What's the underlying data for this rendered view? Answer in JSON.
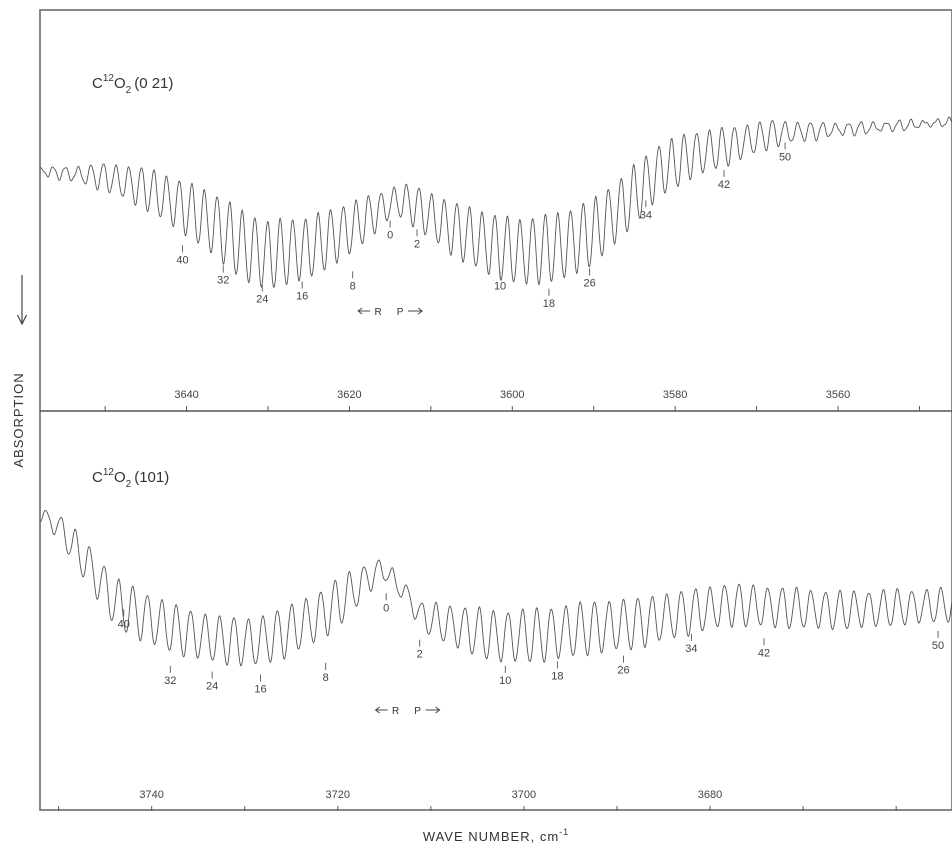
{
  "figure": {
    "y_axis_label": "ABSORPTION",
    "x_axis_label": "WAVE NUMBER, cm",
    "x_axis_label_exponent": "-1"
  },
  "chart_data": [
    {
      "type": "line",
      "title": {
        "base": "C",
        "sup": "12",
        "mid": "O",
        "sub": "2",
        "band": "(0 21)"
      },
      "xlabel": "WAVE NUMBER, cm-1",
      "ylabel": "ABSORPTION",
      "x_reversed": true,
      "xlim": [
        3658,
        3546
      ],
      "xticks": [
        3640,
        3620,
        3600,
        3580,
        3560
      ],
      "branch_labels": {
        "r": "R",
        "p": "P"
      },
      "branch_center": 3615,
      "grid": false,
      "legend": "none",
      "anchors": [
        [
          3658,
          0.44
        ],
        [
          3650,
          0.4
        ],
        [
          3645,
          0.32
        ],
        [
          3640,
          0.18
        ],
        [
          3636,
          0.05
        ],
        [
          3633,
          -0.08
        ],
        [
          3630,
          -0.14
        ],
        [
          3625,
          -0.09
        ],
        [
          3620,
          0.04
        ],
        [
          3616,
          0.18
        ],
        [
          3614,
          0.24
        ],
        [
          3612,
          0.2
        ],
        [
          3608,
          0.06
        ],
        [
          3603,
          -0.06
        ],
        [
          3599,
          -0.12
        ],
        [
          3594,
          -0.08
        ],
        [
          3590,
          0.02
        ],
        [
          3586,
          0.22
        ],
        [
          3582,
          0.44
        ],
        [
          3578,
          0.55
        ],
        [
          3573,
          0.62
        ],
        [
          3568,
          0.7
        ],
        [
          3562,
          0.72
        ],
        [
          3556,
          0.74
        ],
        [
          3546,
          0.78
        ]
      ],
      "amp_anchors": [
        [
          3658,
          0.02
        ],
        [
          3654,
          0.05
        ],
        [
          3649,
          0.1
        ],
        [
          3644,
          0.15
        ],
        [
          3640,
          0.18
        ],
        [
          3636,
          0.22
        ],
        [
          3632,
          0.24
        ],
        [
          3627,
          0.22
        ],
        [
          3620,
          0.18
        ],
        [
          3615,
          0.1
        ],
        [
          3611,
          0.15
        ],
        [
          3605,
          0.2
        ],
        [
          3598,
          0.23
        ],
        [
          3592,
          0.23
        ],
        [
          3585,
          0.2
        ],
        [
          3580,
          0.17
        ],
        [
          3574,
          0.13
        ],
        [
          3568,
          0.09
        ],
        [
          3564,
          0.06
        ],
        [
          3559,
          0.04
        ],
        [
          3552,
          0.03
        ],
        [
          3546,
          0.02
        ]
      ],
      "spacing": 1.55,
      "phase_center": 3613,
      "peak_labels": [
        {
          "label": "40",
          "x": 3640.5,
          "y": -0.05
        },
        {
          "label": "32",
          "x": 3635.5,
          "y": -0.19
        },
        {
          "label": "24",
          "x": 3630.7,
          "y": -0.32
        },
        {
          "label": "16",
          "x": 3625.8,
          "y": -0.3
        },
        {
          "label": "8",
          "x": 3619.6,
          "y": -0.23
        },
        {
          "label": "0",
          "x": 3615.0,
          "y": 0.12
        },
        {
          "label": "2",
          "x": 3611.7,
          "y": 0.06
        },
        {
          "label": "10",
          "x": 3601.5,
          "y": -0.23
        },
        {
          "label": "18",
          "x": 3595.5,
          "y": -0.35
        },
        {
          "label": "26",
          "x": 3590.5,
          "y": -0.21
        },
        {
          "label": "34",
          "x": 3583.6,
          "y": 0.26
        },
        {
          "label": "42",
          "x": 3574.0,
          "y": 0.47
        },
        {
          "label": "50",
          "x": 3566.5,
          "y": 0.66
        }
      ]
    },
    {
      "type": "line",
      "title": {
        "base": "C",
        "sup": "12",
        "mid": "O",
        "sub": "2",
        "band": "(101)"
      },
      "xlabel": "WAVE NUMBER, cm-1",
      "ylabel": "ABSORPTION",
      "x_reversed": true,
      "xlim": [
        3752,
        3654
      ],
      "xticks": [
        3740,
        3720,
        3700,
        3680
      ],
      "branch_labels": {
        "r": "R",
        "p": "P"
      },
      "branch_center": 3712.5,
      "grid": false,
      "legend": "none",
      "anchors": [
        [
          3752,
          0.78
        ],
        [
          3750,
          0.7
        ],
        [
          3747,
          0.45
        ],
        [
          3744,
          0.18
        ],
        [
          3741,
          0.08
        ],
        [
          3737,
          -0.02
        ],
        [
          3733,
          -0.08
        ],
        [
          3729,
          -0.1
        ],
        [
          3726,
          -0.04
        ],
        [
          3722,
          0.08
        ],
        [
          3719,
          0.22
        ],
        [
          3716,
          0.38
        ],
        [
          3715,
          0.4
        ],
        [
          3713,
          0.26
        ],
        [
          3711,
          0.08
        ],
        [
          3708,
          0.02
        ],
        [
          3703,
          -0.06
        ],
        [
          3698,
          -0.05
        ],
        [
          3693,
          0.0
        ],
        [
          3688,
          0.03
        ],
        [
          3683,
          0.1
        ],
        [
          3678,
          0.16
        ],
        [
          3672,
          0.14
        ],
        [
          3666,
          0.12
        ],
        [
          3660,
          0.14
        ],
        [
          3654,
          0.16
        ]
      ],
      "amp_anchors": [
        [
          3752,
          0.05
        ],
        [
          3748,
          0.12
        ],
        [
          3745,
          0.16
        ],
        [
          3741,
          0.17
        ],
        [
          3736,
          0.16
        ],
        [
          3731,
          0.16
        ],
        [
          3725,
          0.17
        ],
        [
          3719,
          0.16
        ],
        [
          3715,
          0.06
        ],
        [
          3712,
          0.08
        ],
        [
          3706,
          0.16
        ],
        [
          3700,
          0.18
        ],
        [
          3694,
          0.18
        ],
        [
          3688,
          0.17
        ],
        [
          3682,
          0.15
        ],
        [
          3676,
          0.14
        ],
        [
          3668,
          0.13
        ],
        [
          3660,
          0.12
        ],
        [
          3654,
          0.11
        ]
      ],
      "spacing": 1.55,
      "phase_center": 3711,
      "peak_labels": [
        {
          "label": "40",
          "x": 3743.0,
          "y": 0.15
        },
        {
          "label": "32",
          "x": 3738.0,
          "y": -0.24
        },
        {
          "label": "24",
          "x": 3733.5,
          "y": -0.28
        },
        {
          "label": "16",
          "x": 3728.3,
          "y": -0.3
        },
        {
          "label": "8",
          "x": 3721.3,
          "y": -0.22
        },
        {
          "label": "0",
          "x": 3714.8,
          "y": 0.26
        },
        {
          "label": "2",
          "x": 3711.2,
          "y": -0.06
        },
        {
          "label": "10",
          "x": 3702.0,
          "y": -0.24
        },
        {
          "label": "18",
          "x": 3696.4,
          "y": -0.21
        },
        {
          "label": "26",
          "x": 3689.3,
          "y": -0.17
        },
        {
          "label": "34",
          "x": 3682.0,
          "y": -0.02
        },
        {
          "label": "42",
          "x": 3674.2,
          "y": -0.05
        },
        {
          "label": "50",
          "x": 3655.5,
          "y": 0.0
        }
      ]
    }
  ]
}
